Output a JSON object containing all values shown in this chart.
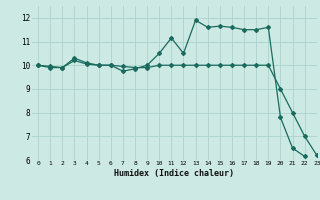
{
  "line1_x": [
    0,
    1,
    2,
    3,
    4,
    5,
    6,
    7,
    8,
    9,
    10,
    11,
    12,
    13,
    14,
    15,
    16,
    17,
    18,
    19,
    20,
    21,
    22
  ],
  "line1_y": [
    10.0,
    9.9,
    9.9,
    10.3,
    10.1,
    10.0,
    10.0,
    9.75,
    9.85,
    10.0,
    10.5,
    11.15,
    10.5,
    11.9,
    11.6,
    11.65,
    11.6,
    11.5,
    11.5,
    11.6,
    7.8,
    6.5,
    6.15
  ],
  "line2_x": [
    0,
    1,
    2,
    3,
    4,
    5,
    6,
    7,
    8,
    9,
    10,
    11,
    12,
    13,
    14,
    15,
    16,
    17,
    18,
    19,
    20,
    21,
    22,
    23
  ],
  "line2_y": [
    10.0,
    9.95,
    9.9,
    10.2,
    10.05,
    10.0,
    10.0,
    9.95,
    9.9,
    9.9,
    10.0,
    10.0,
    10.0,
    10.0,
    10.0,
    10.0,
    10.0,
    10.0,
    10.0,
    10.0,
    9.0,
    8.0,
    7.0,
    6.2
  ],
  "line_color": "#1a6b5e",
  "bg_color": "#cce9e4",
  "grid_color": "#aad4cc",
  "xlabel": "Humidex (Indice chaleur)",
  "ylim": [
    6,
    12.5
  ],
  "xlim": [
    -0.5,
    23
  ],
  "yticks": [
    6,
    7,
    8,
    9,
    10,
    11,
    12
  ],
  "xticks": [
    0,
    1,
    2,
    3,
    4,
    5,
    6,
    7,
    8,
    9,
    10,
    11,
    12,
    13,
    14,
    15,
    16,
    17,
    18,
    19,
    20,
    21,
    22,
    23
  ]
}
